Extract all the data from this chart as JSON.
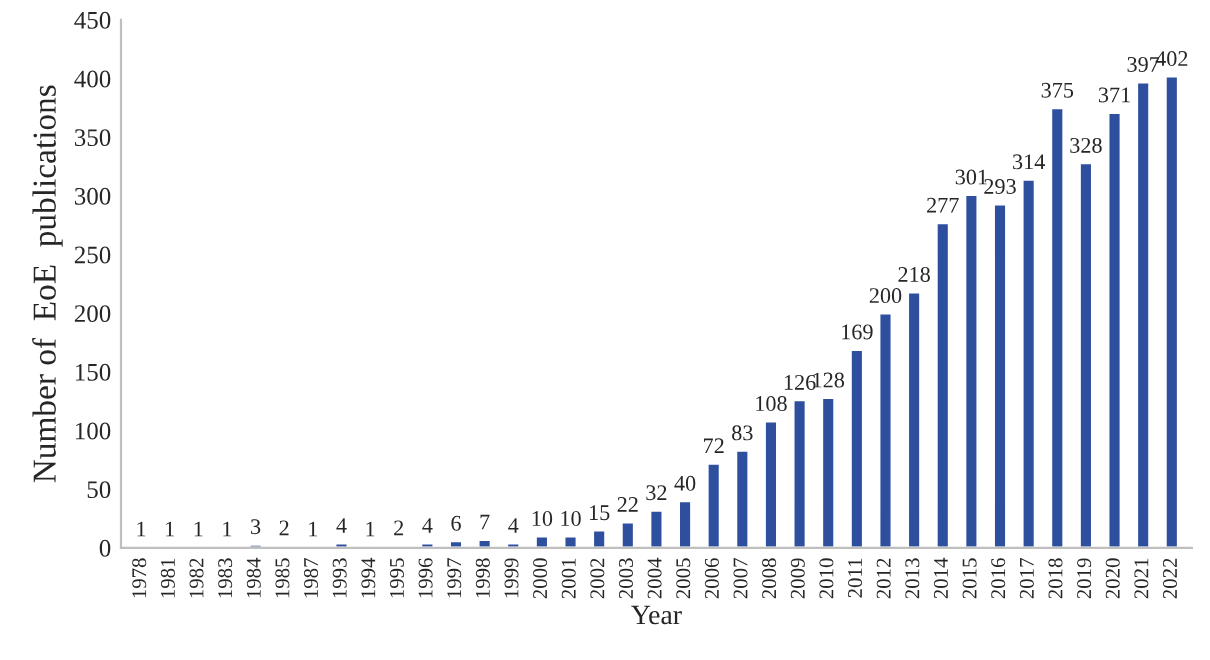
{
  "chart_data": {
    "type": "bar",
    "xlabel": "Year",
    "ylabel": "Number of  EoE  publications",
    "categories": [
      "1978",
      "1981",
      "1982",
      "1983",
      "1984",
      "1985",
      "1987",
      "1993",
      "1994",
      "1995",
      "1996",
      "1997",
      "1998",
      "1999",
      "2000",
      "2001",
      "2002",
      "2003",
      "2004",
      "2005",
      "2006",
      "2007",
      "2008",
      "2009",
      "2010",
      "2011",
      "2012",
      "2013",
      "2014",
      "2015",
      "2016",
      "2017",
      "2018",
      "2019",
      "2020",
      "2021",
      "2022"
    ],
    "values": [
      1,
      1,
      1,
      1,
      3,
      2,
      1,
      4,
      1,
      2,
      4,
      6,
      7,
      4,
      10,
      10,
      15,
      22,
      32,
      40,
      72,
      83,
      108,
      126,
      128,
      169,
      200,
      218,
      277,
      301,
      293,
      314,
      375,
      328,
      371,
      397,
      402
    ],
    "color": "#2e4f9e",
    "ylim": [
      0,
      450
    ],
    "yticks": [
      0,
      50,
      100,
      150,
      200,
      250,
      300,
      350,
      400,
      450
    ],
    "data_labels": true,
    "grid": false,
    "legend": false
  }
}
